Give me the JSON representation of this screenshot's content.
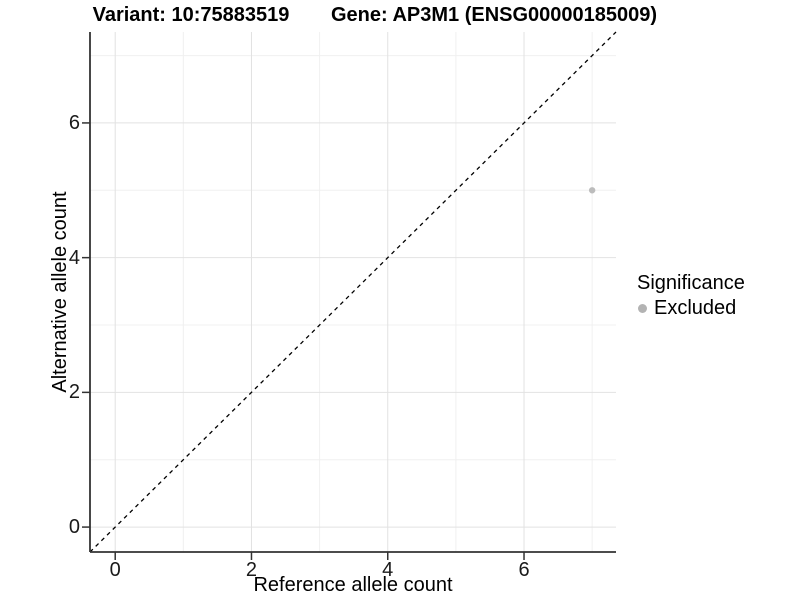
{
  "figure": {
    "titles": {
      "variant": "Variant: 10:75883519",
      "gene": "Gene: AP3M1 (ENSG00000185009)"
    }
  },
  "chart_data": {
    "type": "scatter",
    "titles": [
      "Variant: 10:75883519",
      "Gene: AP3M1 (ENSG00000185009)"
    ],
    "xlabel": "Reference allele count",
    "ylabel": "Alternative allele count",
    "xlim": [
      -0.37,
      7.35
    ],
    "ylim": [
      -0.37,
      7.35
    ],
    "xticks": [
      0,
      2,
      4,
      6
    ],
    "yticks": [
      0,
      2,
      4,
      6
    ],
    "minor_x_gridlines": [
      1,
      3,
      5,
      7
    ],
    "minor_y_gridlines": [
      1,
      3,
      5,
      7
    ],
    "grid": true,
    "legend_position": "right",
    "series": [
      {
        "name": "Excluded",
        "color": "#bcbcbc",
        "points": [
          {
            "x": 7,
            "y": 5
          }
        ]
      }
    ],
    "reference_line": {
      "equation": "y = x",
      "style": "dashed",
      "color": "#000000"
    },
    "legend": {
      "title": "Significance",
      "items": [
        {
          "label": "Excluded",
          "color": "#b3b3b3"
        }
      ]
    }
  },
  "colors": {
    "background": "#ffffff",
    "major_grid": "#e2e2e2",
    "minor_grid": "#f0f0f0",
    "axis_line": "#333333",
    "tick_mark": "#333333",
    "point": "#bcbcbc",
    "dashed_line": "#000000"
  }
}
